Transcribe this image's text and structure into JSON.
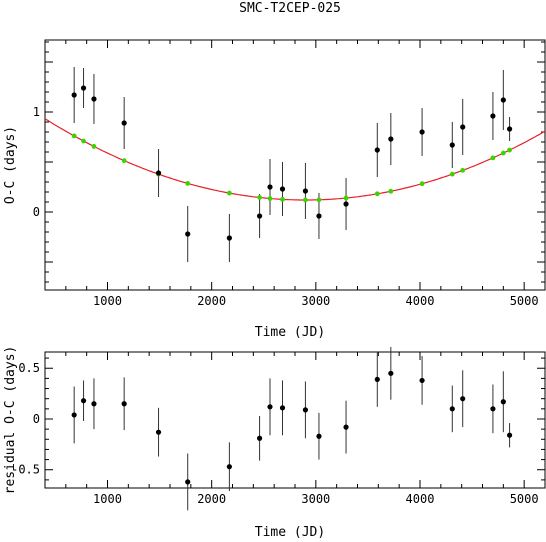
{
  "title": "SMC-T2CEP-025",
  "chart_data": [
    {
      "type": "scatter",
      "xlabel": "Time (JD)",
      "ylabel": "O-C (days)",
      "xlim": [
        400,
        5200
      ],
      "ylim": [
        -0.78,
        1.72
      ],
      "xticks": [
        1000,
        2000,
        3000,
        4000,
        5000
      ],
      "yticks": [
        0,
        1
      ],
      "points": [
        {
          "x": 680,
          "y": 1.17,
          "err": 0.28
        },
        {
          "x": 770,
          "y": 1.24,
          "err": 0.2
        },
        {
          "x": 870,
          "y": 1.13,
          "err": 0.25
        },
        {
          "x": 1160,
          "y": 0.89,
          "err": 0.26
        },
        {
          "x": 1490,
          "y": 0.39,
          "err": 0.24
        },
        {
          "x": 1770,
          "y": -0.22,
          "err": 0.28
        },
        {
          "x": 2170,
          "y": -0.26,
          "err": 0.24
        },
        {
          "x": 2460,
          "y": -0.04,
          "err": 0.22
        },
        {
          "x": 2560,
          "y": 0.25,
          "err": 0.28
        },
        {
          "x": 2680,
          "y": 0.23,
          "err": 0.27
        },
        {
          "x": 2900,
          "y": 0.21,
          "err": 0.28
        },
        {
          "x": 3030,
          "y": -0.04,
          "err": 0.23
        },
        {
          "x": 3290,
          "y": 0.08,
          "err": 0.26
        },
        {
          "x": 3590,
          "y": 0.62,
          "err": 0.27
        },
        {
          "x": 3720,
          "y": 0.73,
          "err": 0.26
        },
        {
          "x": 4020,
          "y": 0.8,
          "err": 0.24
        },
        {
          "x": 4310,
          "y": 0.67,
          "err": 0.23
        },
        {
          "x": 4410,
          "y": 0.85,
          "err": 0.28
        },
        {
          "x": 4700,
          "y": 0.96,
          "err": 0.24
        },
        {
          "x": 4800,
          "y": 1.12,
          "err": 0.3
        },
        {
          "x": 4860,
          "y": 0.83,
          "err": 0.12
        }
      ],
      "fit": {
        "type": "quadratic",
        "x0": 2900,
        "y0": 0.12,
        "a": 1.3e-07,
        "color": "#e8202a"
      },
      "model_points": {
        "color": "#3cd400",
        "x": [
          680,
          770,
          870,
          1160,
          1490,
          1770,
          2170,
          2460,
          2560,
          2680,
          2900,
          3030,
          3290,
          3590,
          3720,
          4020,
          4310,
          4410,
          4700,
          4800,
          4860
        ]
      }
    },
    {
      "type": "scatter",
      "xlabel": "Time (JD)",
      "ylabel": "residual O-C (days)",
      "xlim": [
        400,
        5200
      ],
      "ylim": [
        -0.68,
        0.66
      ],
      "xticks": [
        1000,
        2000,
        3000,
        4000,
        5000
      ],
      "yticks": [
        -0.5,
        0,
        0.5
      ],
      "ytick_labels": [
        "-0.5",
        "0",
        "0.5"
      ],
      "points": [
        {
          "x": 680,
          "y": 0.04,
          "err": 0.28
        },
        {
          "x": 770,
          "y": 0.18,
          "err": 0.2
        },
        {
          "x": 870,
          "y": 0.15,
          "err": 0.25
        },
        {
          "x": 1160,
          "y": 0.15,
          "err": 0.26
        },
        {
          "x": 1490,
          "y": -0.13,
          "err": 0.24
        },
        {
          "x": 1770,
          "y": -0.62,
          "err": 0.28
        },
        {
          "x": 2170,
          "y": -0.47,
          "err": 0.24
        },
        {
          "x": 2460,
          "y": -0.19,
          "err": 0.22
        },
        {
          "x": 2560,
          "y": 0.12,
          "err": 0.28
        },
        {
          "x": 2680,
          "y": 0.11,
          "err": 0.27
        },
        {
          "x": 2900,
          "y": 0.09,
          "err": 0.28
        },
        {
          "x": 3030,
          "y": -0.17,
          "err": 0.23
        },
        {
          "x": 3290,
          "y": -0.08,
          "err": 0.26
        },
        {
          "x": 3590,
          "y": 0.39,
          "err": 0.27
        },
        {
          "x": 3720,
          "y": 0.45,
          "err": 0.26
        },
        {
          "x": 4020,
          "y": 0.38,
          "err": 0.24
        },
        {
          "x": 4310,
          "y": 0.1,
          "err": 0.23
        },
        {
          "x": 4410,
          "y": 0.2,
          "err": 0.28
        },
        {
          "x": 4700,
          "y": 0.1,
          "err": 0.24
        },
        {
          "x": 4800,
          "y": 0.17,
          "err": 0.3
        },
        {
          "x": 4860,
          "y": -0.16,
          "err": 0.12
        }
      ]
    }
  ]
}
